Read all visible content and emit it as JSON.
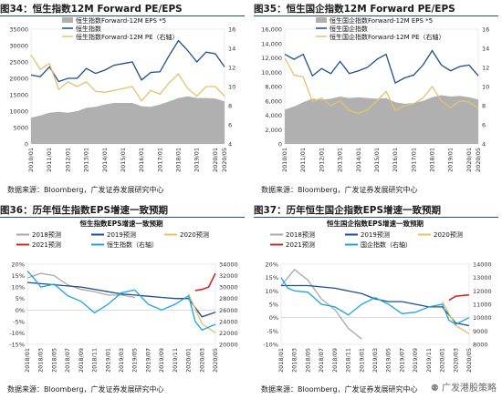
{
  "panels": [
    {
      "title": "图34：恒生指数12M Forward PE/EPS",
      "source": "数据来源：Bloomberg，广发证券发展研究中心",
      "legend": [
        "恒生指数Forward-12M EPS *5",
        "恒生指数",
        "恒生指数Forward-12M PE（右轴）"
      ]
    },
    {
      "title": "图35：恒生国企指数12M Forward PE/EPS",
      "source": "数据来源：Bloomberg，广发证券发展研究中心",
      "legend": [
        "恒生国企指数Forward-12M EPS *5",
        "恒生国企指数",
        "恒生国企指数Forward-12M PE（右轴）"
      ]
    },
    {
      "title": "图36：历年恒生指数EPS增速一致预期",
      "source": "数据来源：Bloomberg，广发证券发展研究中心",
      "inner_title": "恒生指数EPS增速一致预期",
      "legend": [
        "2018预测",
        "2019预测",
        "2020预测",
        "2021预测",
        "恒生指数（右轴）"
      ]
    },
    {
      "title": "图37：历年恒生国企指数EPS增速一致预期",
      "source": "数据来源：Bloomberg，广发证券发展研究中心",
      "inner_title": "恒生国企指数EPS增速一致预期",
      "legend": [
        "2018预测",
        "2019预测",
        "2020预测",
        "2021预测",
        "国企指数（右轴）"
      ]
    }
  ],
  "watermark": "广发港股策略",
  "colors": {
    "eps_gray": "#b0b0b0",
    "index_blue": "#1f4e8c",
    "pe_gold": "#e3c36b",
    "y2018": "#a8a8a8",
    "y2019": "#1f4e8c",
    "y2020": "#e3c36b",
    "y2021": "#d62728",
    "idx_cyan": "#1aa3e0",
    "title_rule": "#2a4f86"
  },
  "chart_data": [
    {
      "type": "area",
      "title": "恒生指数12M Forward PE/EPS",
      "x": [
        "2010/01",
        "2010/07",
        "2011/01",
        "2011/07",
        "2012/01",
        "2012/07",
        "2013/01",
        "2013/07",
        "2014/01",
        "2014/07",
        "2015/01",
        "2015/07",
        "2016/01",
        "2016/07",
        "2017/01",
        "2017/07",
        "2018/01",
        "2018/07",
        "2019/01",
        "2019/07",
        "2020/01",
        "2020/05"
      ],
      "ylim_left": [
        0,
        35000
      ],
      "yticks_left": [
        0,
        5000,
        10000,
        15000,
        20000,
        25000,
        30000,
        35000
      ],
      "ylim_right": [
        4,
        16
      ],
      "yticks_right": [
        4,
        6,
        8,
        10,
        12,
        14,
        16
      ],
      "series": [
        {
          "name": "恒生指数Forward-12M EPS *5",
          "axis": "left",
          "values": [
            8000,
            8700,
            9500,
            9800,
            9500,
            10000,
            11000,
            11300,
            12000,
            12500,
            12500,
            12500,
            11500,
            11300,
            12000,
            13000,
            14000,
            14500,
            14000,
            14000,
            13800,
            13000
          ]
        },
        {
          "name": "恒生指数",
          "axis": "left",
          "values": [
            21000,
            20500,
            23500,
            19000,
            20000,
            20000,
            23000,
            21500,
            22500,
            24000,
            24500,
            25000,
            19500,
            21800,
            22000,
            27000,
            31500,
            28500,
            25000,
            28000,
            27500,
            23500
          ]
        },
        {
          "name": "恒生指数Forward-12M PE（右轴）",
          "axis": "right",
          "values": [
            13.3,
            11.8,
            12.4,
            9.7,
            10.5,
            10.0,
            10.5,
            9.5,
            9.4,
            9.6,
            9.8,
            10.0,
            8.5,
            9.6,
            9.2,
            10.4,
            11.3,
            9.8,
            9.0,
            10.0,
            10.0,
            9.0
          ]
        }
      ]
    },
    {
      "type": "area",
      "title": "恒生国企指数12M Forward PE/EPS",
      "x": [
        "2010/01",
        "2010/07",
        "2011/01",
        "2011/07",
        "2012/01",
        "2012/07",
        "2013/01",
        "2013/07",
        "2014/01",
        "2014/07",
        "2015/01",
        "2015/07",
        "2016/01",
        "2016/07",
        "2017/01",
        "2017/07",
        "2018/01",
        "2018/07",
        "2019/01",
        "2019/07",
        "2020/01",
        "2020/05"
      ],
      "ylim_left": [
        0,
        16000
      ],
      "yticks_left": [
        0,
        2000,
        4000,
        6000,
        8000,
        10000,
        12000,
        14000,
        16000
      ],
      "ylim_right": [
        4,
        16
      ],
      "yticks_right": [
        4,
        6,
        8,
        10,
        12,
        14,
        16
      ],
      "series": [
        {
          "name": "恒生国企指数Forward-12M EPS *5",
          "axis": "left",
          "values": [
            4800,
            5200,
            5800,
            6300,
            6200,
            6300,
            6600,
            6400,
            6500,
            6400,
            6300,
            6400,
            5800,
            5600,
            5700,
            6000,
            6500,
            6800,
            6600,
            6700,
            6500,
            6200
          ]
        },
        {
          "name": "恒生国企指数",
          "axis": "left",
          "values": [
            12500,
            11800,
            12500,
            9500,
            10500,
            9800,
            11500,
            9800,
            10200,
            10700,
            11800,
            12500,
            8500,
            9200,
            9600,
            11000,
            13000,
            11000,
            10200,
            10800,
            11000,
            9500
          ]
        },
        {
          "name": "恒生国企指数Forward-12M PE（右轴）",
          "axis": "right",
          "values": [
            13.0,
            11.2,
            11.0,
            8.4,
            8.8,
            8.0,
            8.5,
            7.5,
            7.2,
            7.6,
            8.5,
            9.5,
            7.5,
            8.0,
            8.2,
            8.8,
            10.0,
            8.5,
            7.8,
            8.5,
            8.4,
            7.7
          ]
        }
      ]
    },
    {
      "type": "line",
      "title": "恒生指数EPS增速一致预期",
      "x_labels": [
        "2018/01",
        "2018/03",
        "2018/05",
        "2018/07",
        "2018/09",
        "2018/11",
        "2019/01",
        "2019/03",
        "2019/05",
        "2019/07",
        "2019/09",
        "2019/11",
        "2020/01",
        "2020/03",
        "2020/05"
      ],
      "ylim_left": [
        -0.15,
        0.2
      ],
      "yticks_left": [
        "-15%",
        "-10%",
        "-5%",
        "0%",
        "5%",
        "10%",
        "15%",
        "20%"
      ],
      "ylim_right": [
        20000,
        34000
      ],
      "yticks_right": [
        20000,
        22000,
        24000,
        26000,
        28000,
        30000,
        32000,
        34000
      ],
      "series": [
        {
          "name": "2018预测",
          "axis": "left",
          "t": [
            0,
            1,
            2,
            3,
            4,
            5,
            6,
            7,
            8
          ],
          "values": [
            0.14,
            0.16,
            0.15,
            0.11,
            0.09,
            0.08,
            0.065,
            0.065,
            0.055
          ]
        },
        {
          "name": "2019预测",
          "axis": "left",
          "t": [
            0,
            2,
            4,
            6,
            7,
            8,
            9,
            10,
            11,
            12,
            13,
            14
          ],
          "values": [
            0.12,
            0.11,
            0.1,
            0.08,
            0.07,
            0.065,
            0.06,
            0.055,
            0.05,
            0.05,
            -0.03,
            -0.01
          ]
        },
        {
          "name": "2020预测",
          "axis": "left",
          "t": [
            12,
            13,
            14
          ],
          "values": [
            0.07,
            -0.06,
            -0.1
          ]
        },
        {
          "name": "2021预测",
          "axis": "left",
          "t": [
            12.5,
            13,
            13.5,
            14
          ],
          "values": [
            0.085,
            0.09,
            0.1,
            0.16
          ]
        },
        {
          "name": "恒生指数（右轴）",
          "axis": "right",
          "t": [
            0,
            0.5,
            1,
            2,
            3,
            4,
            5,
            6,
            7,
            8,
            9,
            10,
            11,
            12,
            12.5,
            13,
            14
          ],
          "values": [
            32800,
            31500,
            30000,
            30500,
            28500,
            27500,
            25500,
            27000,
            29000,
            29500,
            27000,
            26000,
            27000,
            28500,
            24000,
            22500,
            23500
          ]
        }
      ]
    },
    {
      "type": "line",
      "title": "恒生国企指数EPS增速一致预期",
      "x_labels": [
        "2018/01",
        "2018/03",
        "2018/05",
        "2018/07",
        "2018/09",
        "2018/11",
        "2019/01",
        "2019/03",
        "2019/05",
        "2019/07",
        "2019/09",
        "2019/11",
        "2020/01",
        "2020/03",
        "2020/05"
      ],
      "ylim_left": [
        -0.1,
        0.2
      ],
      "yticks_left": [
        "-10%",
        "-5%",
        "0%",
        "5%",
        "10%",
        "15%",
        "20%"
      ],
      "ylim_right": [
        8000,
        14000
      ],
      "yticks_right": [
        8000,
        9000,
        10000,
        11000,
        12000,
        13000,
        14000
      ],
      "series": [
        {
          "name": "2018预测",
          "axis": "left",
          "t": [
            0,
            1,
            2,
            3,
            4,
            5,
            6
          ],
          "values": [
            0.12,
            0.18,
            0.14,
            0.07,
            0.03,
            -0.04,
            -0.08
          ]
        },
        {
          "name": "2019预测",
          "axis": "left",
          "t": [
            0,
            2,
            4,
            6,
            7,
            8,
            9,
            10,
            11,
            12,
            13,
            14
          ],
          "values": [
            0.12,
            0.12,
            0.11,
            0.09,
            0.07,
            0.06,
            0.06,
            0.05,
            0.04,
            0.04,
            -0.02,
            -0.03
          ]
        },
        {
          "name": "2020预测",
          "axis": "left",
          "t": [
            12,
            13,
            14
          ],
          "values": [
            0.06,
            -0.03,
            -0.06
          ]
        },
        {
          "name": "2021预测",
          "axis": "left",
          "t": [
            12.5,
            13,
            14
          ],
          "values": [
            0.065,
            0.08,
            0.085
          ]
        },
        {
          "name": "国企指数（右轴）",
          "axis": "right",
          "t": [
            0,
            0.5,
            1,
            2,
            3,
            4,
            5,
            6,
            7,
            8,
            9,
            10,
            11,
            12,
            12.5,
            13,
            14
          ],
          "values": [
            13000,
            12200,
            12000,
            11900,
            11000,
            10800,
            10200,
            11000,
            11500,
            11000,
            10300,
            10400,
            10800,
            11000,
            9800,
            9500,
            10000
          ]
        }
      ]
    }
  ]
}
